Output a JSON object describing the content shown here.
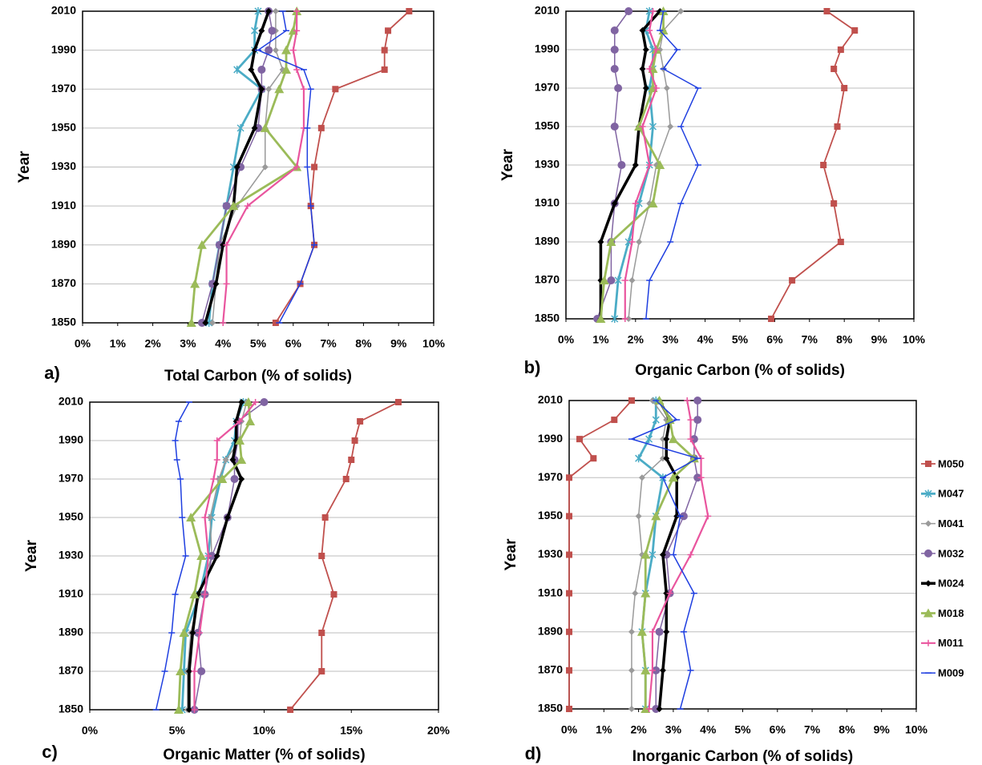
{
  "chart_data": [
    {
      "type": "line",
      "label": "a)",
      "xlabel": "Total Carbon (% of solids)",
      "ylabel": "Year",
      "years": [
        2010,
        2000,
        1990,
        1980,
        1970,
        1950,
        1930,
        1910,
        1890,
        1870,
        1850
      ],
      "xlim": [
        0,
        10
      ],
      "ylim": [
        1850,
        2010
      ],
      "xticks": [
        {
          "value": 0,
          "label": "0%"
        },
        {
          "value": 1,
          "label": "1%"
        },
        {
          "value": 2,
          "label": "2%"
        },
        {
          "value": 3,
          "label": "3%"
        },
        {
          "value": 4,
          "label": "4%"
        },
        {
          "value": 5,
          "label": "5%"
        },
        {
          "value": 6,
          "label": "6%"
        },
        {
          "value": 7,
          "label": "7%"
        },
        {
          "value": 8,
          "label": "8%"
        },
        {
          "value": 9,
          "label": "9%"
        },
        {
          "value": 10,
          "label": "10%"
        }
      ],
      "yticks": [
        1850,
        1870,
        1890,
        1910,
        1930,
        1950,
        1970,
        1990,
        2010
      ],
      "grid": true,
      "series": [
        {
          "color": "#c0504d",
          "marker": "square",
          "values": [
            9.3,
            8.7,
            8.6,
            8.6,
            7.2,
            6.8,
            6.6,
            6.5,
            6.6,
            6.2,
            5.5
          ]
        },
        {
          "color": "#4bacc6",
          "marker": "asterisk",
          "values": [
            5.0,
            4.9,
            4.9,
            4.4,
            5.1,
            4.5,
            4.3,
            4.1,
            3.9,
            3.7,
            3.6
          ]
        },
        {
          "color": "#9a9a9a",
          "marker": "diamond",
          "values": [
            5.5,
            5.5,
            5.5,
            5.7,
            5.3,
            5.2,
            5.2,
            4.4,
            3.9,
            3.8,
            3.7
          ]
        },
        {
          "color": "#8064a2",
          "marker": "circle",
          "values": [
            5.3,
            5.4,
            5.3,
            5.1,
            5.1,
            5.0,
            4.5,
            4.1,
            3.9,
            3.7,
            3.4
          ]
        },
        {
          "color": "#000000",
          "marker": "diamond",
          "values": [
            5.3,
            5.1,
            4.9,
            4.8,
            5.1,
            4.9,
            4.4,
            4.3,
            4.0,
            3.8,
            3.5
          ]
        },
        {
          "color": "#9bbb59",
          "marker": "triangle",
          "values": [
            6.1,
            6.0,
            5.8,
            5.8,
            5.6,
            5.2,
            6.1,
            4.3,
            3.4,
            3.2,
            3.1
          ]
        },
        {
          "color": "#e9559e",
          "marker": "plus",
          "values": [
            6.1,
            6.1,
            6.0,
            6.1,
            6.3,
            6.3,
            6.1,
            4.7,
            4.1,
            4.1,
            4.0
          ]
        },
        {
          "color": "#1f3fe0",
          "marker": "dash",
          "values": [
            5.7,
            5.8,
            5.0,
            6.3,
            6.5,
            6.4,
            6.4,
            6.5,
            6.6,
            6.2,
            5.6
          ]
        }
      ]
    },
    {
      "type": "line",
      "label": "b)",
      "xlabel": "Organic Carbon (% of solids)",
      "ylabel": "Year",
      "years": [
        2010,
        2000,
        1990,
        1980,
        1970,
        1950,
        1930,
        1910,
        1890,
        1870,
        1850
      ],
      "xlim": [
        0,
        10
      ],
      "ylim": [
        1850,
        2010
      ],
      "xticks": [
        {
          "value": 0,
          "label": "0%"
        },
        {
          "value": 1,
          "label": "1%"
        },
        {
          "value": 2,
          "label": "2%"
        },
        {
          "value": 3,
          "label": "3%"
        },
        {
          "value": 4,
          "label": "4%"
        },
        {
          "value": 5,
          "label": "5%"
        },
        {
          "value": 6,
          "label": "6%"
        },
        {
          "value": 7,
          "label": "7%"
        },
        {
          "value": 8,
          "label": "8%"
        },
        {
          "value": 9,
          "label": "9%"
        },
        {
          "value": 10,
          "label": "10%"
        }
      ],
      "yticks": [
        1850,
        1870,
        1890,
        1910,
        1930,
        1950,
        1970,
        1990,
        2010
      ],
      "grid": true,
      "series": [
        {
          "color": "#c0504d",
          "marker": "square",
          "values": [
            7.5,
            8.3,
            7.9,
            7.7,
            8.0,
            7.8,
            7.4,
            7.7,
            7.9,
            6.5,
            5.9
          ]
        },
        {
          "color": "#4bacc6",
          "marker": "asterisk",
          "values": [
            2.4,
            2.3,
            2.5,
            2.5,
            2.4,
            2.5,
            2.4,
            2.1,
            1.8,
            1.5,
            1.4
          ]
        },
        {
          "color": "#9a9a9a",
          "marker": "diamond",
          "values": [
            3.3,
            2.8,
            2.7,
            2.8,
            2.9,
            3.0,
            2.6,
            2.4,
            2.1,
            1.9,
            1.8
          ]
        },
        {
          "color": "#8064a2",
          "marker": "circle",
          "values": [
            1.8,
            1.4,
            1.4,
            1.4,
            1.5,
            1.4,
            1.6,
            1.4,
            1.3,
            1.3,
            0.9
          ]
        },
        {
          "color": "#000000",
          "marker": "diamond",
          "values": [
            2.7,
            2.2,
            2.3,
            2.2,
            2.3,
            2.1,
            2.0,
            1.4,
            1.0,
            1.0,
            1.0
          ]
        },
        {
          "color": "#9bbb59",
          "marker": "triangle",
          "values": [
            2.8,
            2.8,
            2.6,
            2.5,
            2.5,
            2.1,
            2.7,
            2.5,
            1.3,
            1.1,
            1.0
          ]
        },
        {
          "color": "#e9559e",
          "marker": "plus",
          "values": [
            2.5,
            2.4,
            2.6,
            2.4,
            2.6,
            2.2,
            2.4,
            2.0,
            1.9,
            1.7,
            1.7
          ]
        },
        {
          "color": "#1f3fe0",
          "marker": "dash",
          "values": [
            2.8,
            2.7,
            3.2,
            2.8,
            3.8,
            3.3,
            3.8,
            3.3,
            3.0,
            2.4,
            2.3
          ]
        }
      ]
    },
    {
      "type": "line",
      "label": "c)",
      "xlabel": "Organic Matter  (% of solids)",
      "ylabel": "Year",
      "years": [
        2010,
        2000,
        1990,
        1980,
        1970,
        1950,
        1930,
        1910,
        1890,
        1870,
        1850
      ],
      "xlim": [
        0,
        20
      ],
      "ylim": [
        1850,
        2010
      ],
      "xticks": [
        {
          "value": 0,
          "label": "0%"
        },
        {
          "value": 5,
          "label": "5%"
        },
        {
          "value": 10,
          "label": "10%"
        },
        {
          "value": 15,
          "label": "15%"
        },
        {
          "value": 20,
          "label": "20%"
        }
      ],
      "yticks": [
        1850,
        1870,
        1890,
        1910,
        1930,
        1950,
        1970,
        1990,
        2010
      ],
      "grid": true,
      "series": [
        {
          "color": "#c0504d",
          "marker": "square",
          "values": [
            17.7,
            15.5,
            15.2,
            15.0,
            14.7,
            13.5,
            13.3,
            14.0,
            13.3,
            13.3,
            11.5
          ]
        },
        {
          "color": "#4bacc6",
          "marker": "asterisk",
          "values": [
            8.8,
            8.4,
            8.3,
            7.8,
            7.5,
            7.0,
            6.8,
            6.3,
            5.5,
            5.4,
            5.3
          ]
        },
        {
          "color": "#9a9a9a",
          "marker": "diamond",
          "values": [
            9.0,
            8.7,
            8.6,
            7.8,
            7.4,
            6.9,
            7.0,
            6.3,
            5.8,
            5.6,
            5.6
          ]
        },
        {
          "color": "#8064a2",
          "marker": "circle",
          "values": [
            10.0,
            8.5,
            8.5,
            8.3,
            8.3,
            7.9,
            7.0,
            6.6,
            6.2,
            6.4,
            6.0
          ]
        },
        {
          "color": "#000000",
          "marker": "diamond",
          "values": [
            8.7,
            8.4,
            8.4,
            8.2,
            8.7,
            7.9,
            7.3,
            6.2,
            5.9,
            5.7,
            5.7
          ]
        },
        {
          "color": "#9bbb59",
          "marker": "triangle",
          "values": [
            9.1,
            9.2,
            8.6,
            8.7,
            7.6,
            5.8,
            6.4,
            6.0,
            5.4,
            5.2,
            5.1
          ]
        },
        {
          "color": "#e9559e",
          "marker": "plus",
          "values": [
            9.5,
            8.6,
            7.3,
            7.3,
            7.1,
            6.6,
            6.8,
            6.6,
            6.3,
            6.0,
            6.0
          ]
        },
        {
          "color": "#1f3fe0",
          "marker": "dash",
          "values": [
            5.7,
            5.1,
            4.9,
            5.0,
            5.2,
            5.3,
            5.5,
            4.9,
            4.7,
            4.3,
            3.8
          ]
        }
      ]
    },
    {
      "type": "line",
      "label": "d)",
      "xlabel": "Inorganic Carbon (% of solids)",
      "ylabel": "Year",
      "legend": "right",
      "years": [
        2010,
        2000,
        1990,
        1980,
        1970,
        1950,
        1930,
        1910,
        1890,
        1870,
        1850
      ],
      "xlim": [
        0,
        10
      ],
      "ylim": [
        1850,
        2010
      ],
      "xticks": [
        {
          "value": 0,
          "label": "0%"
        },
        {
          "value": 1,
          "label": "1%"
        },
        {
          "value": 2,
          "label": "2%"
        },
        {
          "value": 3,
          "label": "3%"
        },
        {
          "value": 4,
          "label": "4%"
        },
        {
          "value": 5,
          "label": "5%"
        },
        {
          "value": 6,
          "label": "6%"
        },
        {
          "value": 7,
          "label": "7%"
        },
        {
          "value": 8,
          "label": "8%"
        },
        {
          "value": 9,
          "label": "9%"
        },
        {
          "value": 10,
          "label": "10%"
        }
      ],
      "yticks": [
        1850,
        1870,
        1890,
        1910,
        1930,
        1950,
        1970,
        1990,
        2010
      ],
      "grid": true,
      "series": [
        {
          "name": "M050",
          "color": "#c0504d",
          "marker": "square",
          "values": [
            1.8,
            1.3,
            0.3,
            0.7,
            0.0,
            0.0,
            0.0,
            0.0,
            0.0,
            0.0,
            0.0
          ]
        },
        {
          "name": "M047",
          "color": "#4bacc6",
          "marker": "asterisk",
          "values": [
            2.5,
            2.5,
            2.3,
            2.0,
            2.7,
            2.5,
            2.4,
            2.2,
            2.1,
            2.2,
            2.2
          ]
        },
        {
          "name": "M041",
          "color": "#9a9a9a",
          "marker": "diamond",
          "values": [
            2.4,
            2.8,
            2.7,
            2.7,
            2.1,
            2.0,
            2.1,
            1.9,
            1.8,
            1.8,
            1.8
          ]
        },
        {
          "name": "M032",
          "color": "#8064a2",
          "marker": "circle",
          "values": [
            3.7,
            3.7,
            3.6,
            3.6,
            3.7,
            3.3,
            2.8,
            2.9,
            2.6,
            2.5,
            2.5
          ]
        },
        {
          "name": "M024",
          "color": "#000000",
          "marker": "diamond",
          "values": [
            2.6,
            2.9,
            2.8,
            2.8,
            3.1,
            3.1,
            2.7,
            2.8,
            2.8,
            2.7,
            2.6
          ]
        },
        {
          "name": "M018",
          "color": "#9bbb59",
          "marker": "triangle",
          "values": [
            2.6,
            2.9,
            3.0,
            3.6,
            3.0,
            2.5,
            2.2,
            2.2,
            2.1,
            2.2,
            2.2
          ]
        },
        {
          "name": "M011",
          "color": "#e9559e",
          "marker": "plus",
          "values": [
            3.4,
            3.5,
            3.5,
            3.8,
            3.8,
            4.0,
            3.5,
            2.9,
            2.4,
            2.4,
            2.3
          ]
        },
        {
          "name": "M009",
          "color": "#1f3fe0",
          "marker": "dash",
          "values": [
            2.5,
            3.1,
            1.8,
            3.7,
            2.7,
            3.2,
            3.0,
            3.6,
            3.3,
            3.5,
            3.2
          ]
        }
      ]
    }
  ]
}
